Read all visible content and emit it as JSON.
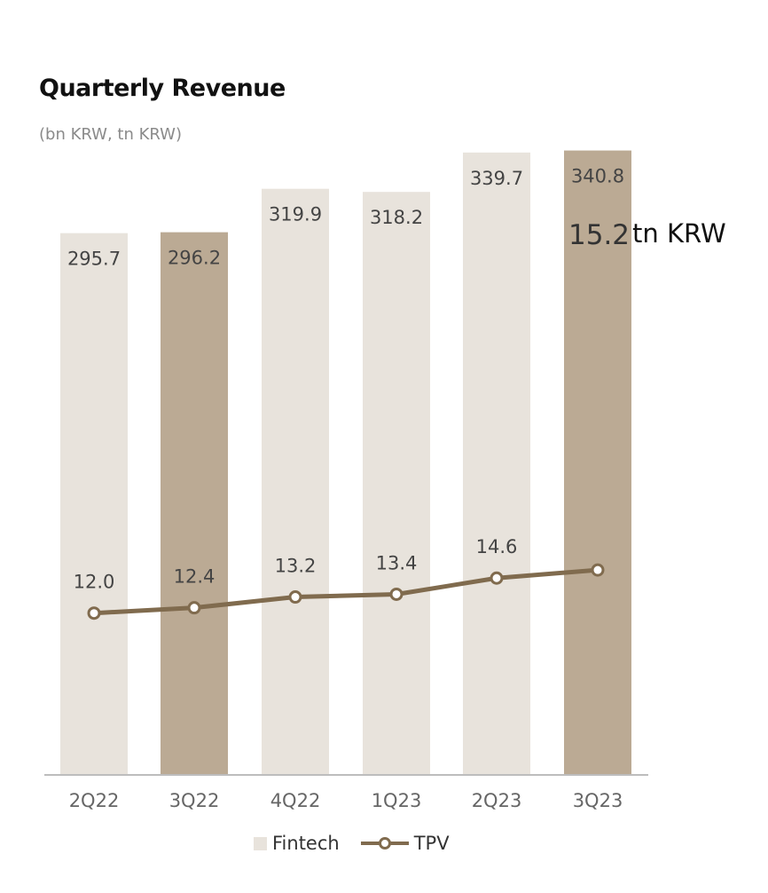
{
  "title": "Quarterly Revenue",
  "subtitle": "(bn KRW, tn KRW)",
  "callout": {
    "value": "15.2",
    "unit": "tn KRW"
  },
  "colors": {
    "bar_light": "#e8e3dc",
    "bar_dark": "#bbaa94",
    "line": "#806b4e",
    "axis": "#bdbdbd"
  },
  "legend": {
    "fintech": "Fintech",
    "tpv": "TPV"
  },
  "chart_data": {
    "type": "bar",
    "categories": [
      "2Q22",
      "3Q22",
      "4Q22",
      "1Q23",
      "2Q23",
      "3Q23"
    ],
    "series": [
      {
        "name": "Fintech",
        "type": "bar",
        "values": [
          295.7,
          296.2,
          319.9,
          318.2,
          339.7,
          340.8
        ],
        "labels": [
          "295.7",
          "296.2",
          "319.9",
          "318.2",
          "339.7",
          "340.8"
        ],
        "highlight": [
          false,
          true,
          false,
          false,
          false,
          true
        ]
      },
      {
        "name": "TPV",
        "type": "line",
        "values": [
          12.0,
          12.4,
          13.2,
          13.4,
          14.6,
          15.2
        ],
        "labels": [
          "12.0",
          "12.4",
          "13.2",
          "13.4",
          "14.6",
          ""
        ]
      }
    ],
    "ylim_bar": [
      0,
      390
    ],
    "ylim_line": [
      0,
      53
    ],
    "grid": false,
    "legend_position": "bottom"
  }
}
